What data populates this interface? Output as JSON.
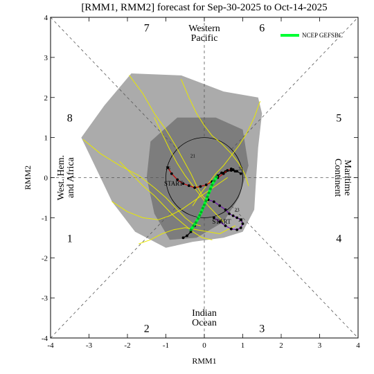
{
  "chart_data": {
    "type": "line",
    "title": "[RMM1, RMM2] forecast for Sep-30-2025 to Oct-14-2025",
    "xlabel": "RMM1",
    "ylabel": "RMM2",
    "xlim": [
      -4,
      4
    ],
    "ylim": [
      -4,
      4
    ],
    "xticks": [
      "-4",
      "-3",
      "-2",
      "-1",
      "0",
      "1",
      "2",
      "3",
      "4"
    ],
    "yticks": [
      "-4",
      "-3",
      "-2",
      "-1",
      "0",
      "1",
      "2",
      "3",
      "4"
    ],
    "grid": false,
    "legend_position": "top-right",
    "phases": [
      {
        "label": "1",
        "x": -3.5,
        "y": -1.5
      },
      {
        "label": "2",
        "x": -1.5,
        "y": -3.75
      },
      {
        "label": "3",
        "x": 1.5,
        "y": -3.75
      },
      {
        "label": "4",
        "x": 3.5,
        "y": -1.5
      },
      {
        "label": "5",
        "x": 3.5,
        "y": 1.5
      },
      {
        "label": "6",
        "x": 1.5,
        "y": 3.75
      },
      {
        "label": "7",
        "x": -1.5,
        "y": 3.75
      },
      {
        "label": "8",
        "x": -3.5,
        "y": 1.5
      }
    ],
    "regions": [
      {
        "lines": [
          "Western",
          "Pacific"
        ],
        "x": 0,
        "y": 3.55
      },
      {
        "lines": [
          "Indian",
          "Ocean"
        ],
        "x": 0,
        "y": -3.55
      }
    ],
    "side_regions": [
      {
        "lines": [
          "West. Hem.",
          "and Africa"
        ],
        "x": -3.55,
        "y": 0,
        "rotate": -90
      },
      {
        "lines": [
          "Maritime",
          "Continent"
        ],
        "x": 3.55,
        "y": 0,
        "rotate": 90
      }
    ],
    "unit_circle_radius": 1,
    "outer_shade": [
      [
        -3.2,
        1.0
      ],
      [
        -2.6,
        1.8
      ],
      [
        -1.9,
        2.6
      ],
      [
        -0.6,
        2.55
      ],
      [
        0.5,
        2.15
      ],
      [
        1.4,
        2.0
      ],
      [
        1.5,
        1.6
      ],
      [
        1.4,
        0.75
      ],
      [
        1.35,
        0.0
      ],
      [
        1.3,
        -0.8
      ],
      [
        1.0,
        -1.35
      ],
      [
        0.5,
        -1.5
      ],
      [
        -0.3,
        -1.6
      ],
      [
        -1.0,
        -1.75
      ],
      [
        -1.8,
        -1.35
      ],
      [
        -2.4,
        -0.6
      ],
      [
        -2.8,
        0.2
      ]
    ],
    "inner_shade": [
      [
        -1.4,
        0.9
      ],
      [
        -0.7,
        1.5
      ],
      [
        0.3,
        1.5
      ],
      [
        1.0,
        1.2
      ],
      [
        1.15,
        0.3
      ],
      [
        0.9,
        -0.5
      ],
      [
        0.5,
        -1.1
      ],
      [
        -0.2,
        -1.5
      ],
      [
        -0.9,
        -1.55
      ],
      [
        -1.3,
        -0.9
      ],
      [
        -1.5,
        0.0
      ]
    ],
    "series": [
      {
        "name": "NCEP GEFSBC",
        "color": "#00ff33",
        "width": 4,
        "x": [
          -0.35,
          -0.28,
          -0.22,
          -0.16,
          -0.12,
          -0.08,
          -0.04,
          0.0,
          0.04,
          0.08,
          0.12,
          0.16,
          0.2,
          0.26,
          0.32
        ],
        "y": [
          -1.3,
          -1.2,
          -1.12,
          -1.02,
          -0.94,
          -0.86,
          -0.76,
          -0.68,
          -0.58,
          -0.48,
          -0.38,
          -0.28,
          -0.18,
          -0.08,
          0.02
        ]
      },
      {
        "name": "",
        "color": "#000000",
        "width": 1.2,
        "x": [
          -0.55,
          -0.45,
          -0.35,
          -0.25,
          -0.15,
          -0.05,
          0.05,
          0.15,
          0.25,
          0.35,
          0.45,
          0.55,
          0.7,
          0.85,
          0.95
        ],
        "y": [
          -1.5,
          -1.45,
          -1.35,
          -1.2,
          -1.0,
          -0.8,
          -0.55,
          -0.3,
          -0.1,
          0.05,
          0.12,
          0.15,
          0.18,
          0.16,
          0.1
        ]
      },
      {
        "name": "",
        "color": "#cc0000",
        "width": 1.2,
        "x": [
          -0.95,
          -0.85,
          -0.7,
          -0.55,
          -0.4,
          -0.25,
          -0.1,
          0.05,
          0.2,
          0.35,
          0.5,
          0.6,
          0.7,
          0.75,
          0.8
        ],
        "y": [
          0.25,
          0.1,
          -0.05,
          -0.15,
          -0.2,
          -0.25,
          -0.22,
          -0.18,
          -0.1,
          0.0,
          0.1,
          0.18,
          0.22,
          0.2,
          0.16
        ]
      },
      {
        "name": "",
        "color": "#6a0dad",
        "width": 1.2,
        "x": [
          0.1,
          0.25,
          0.4,
          0.55,
          0.65,
          0.75,
          0.85,
          0.95,
          1.0,
          0.95,
          0.85,
          0.7,
          0.55,
          0.4,
          0.25
        ],
        "y": [
          -0.55,
          -0.6,
          -0.7,
          -0.8,
          -0.9,
          -0.95,
          -1.0,
          -1.05,
          -1.15,
          -1.25,
          -1.3,
          -1.28,
          -1.2,
          -1.1,
          -1.0
        ]
      },
      {
        "name": "",
        "color": "#e8e800",
        "width": 1,
        "x": [
          -3.15,
          -2.7,
          -2.2,
          -1.7,
          -1.3,
          -1.0,
          -0.7,
          -0.5,
          -0.3,
          -0.1
        ],
        "y": [
          0.95,
          0.6,
          0.3,
          0.05,
          -0.25,
          -0.5,
          -0.8,
          -1.0,
          -1.15,
          -1.2
        ]
      },
      {
        "name": "",
        "color": "#e8e800",
        "width": 1,
        "x": [
          -1.95,
          -1.6,
          -1.3,
          -1.0,
          -0.75,
          -0.55,
          -0.35,
          -0.2,
          -0.05,
          0.1
        ],
        "y": [
          2.55,
          2.1,
          1.6,
          1.2,
          0.8,
          0.45,
          0.1,
          -0.2,
          -0.45,
          -0.6
        ]
      },
      {
        "name": "",
        "color": "#e8e800",
        "width": 1,
        "x": [
          -0.6,
          -0.4,
          -0.2,
          0.0,
          0.2,
          0.45,
          0.7,
          0.9,
          1.05,
          1.15
        ],
        "y": [
          2.45,
          2.0,
          1.6,
          1.3,
          1.05,
          0.85,
          0.6,
          0.35,
          0.1,
          -0.2
        ]
      },
      {
        "name": "",
        "color": "#e8e800",
        "width": 1,
        "x": [
          1.45,
          1.3,
          1.1,
          0.9,
          0.7,
          0.5,
          0.3,
          0.1,
          -0.1,
          -0.3
        ],
        "y": [
          1.9,
          1.5,
          1.1,
          0.8,
          0.55,
          0.3,
          0.1,
          -0.15,
          -0.4,
          -0.7
        ]
      },
      {
        "name": "",
        "color": "#e8e800",
        "width": 1,
        "x": [
          -1.7,
          -1.4,
          -1.1,
          -0.8,
          -0.5,
          -0.2,
          0.1,
          0.4,
          0.6,
          0.8
        ],
        "y": [
          -1.65,
          -1.55,
          -1.4,
          -1.3,
          -1.25,
          -1.3,
          -1.35,
          -1.4,
          -1.3,
          -1.2
        ]
      },
      {
        "name": "",
        "color": "#e8e800",
        "width": 1,
        "x": [
          -2.4,
          -2.0,
          -1.6,
          -1.2,
          -0.9,
          -0.6,
          -0.3,
          0.0,
          0.3,
          0.6
        ],
        "y": [
          -0.6,
          -0.85,
          -1.0,
          -1.05,
          -0.95,
          -0.8,
          -0.6,
          -0.4,
          -0.2,
          0.0
        ]
      },
      {
        "name": "",
        "color": "#e8e800",
        "width": 1,
        "x": [
          -1.3,
          -1.1,
          -0.9,
          -0.7,
          -0.5,
          -0.3,
          -0.1,
          0.1,
          0.3,
          0.5
        ],
        "y": [
          1.5,
          1.1,
          0.7,
          0.35,
          0.05,
          -0.2,
          -0.45,
          -0.7,
          -0.9,
          -1.1
        ]
      },
      {
        "name": "",
        "color": "#e8e800",
        "width": 1,
        "x": [
          -2.2,
          -1.9,
          -1.6,
          -1.3,
          -1.05,
          -0.8,
          -0.55,
          -0.3,
          -0.05,
          0.2
        ],
        "y": [
          0.4,
          0.1,
          -0.2,
          -0.45,
          -0.7,
          -0.95,
          -1.15,
          -1.35,
          -1.5,
          -1.55
        ]
      }
    ],
    "day_labels": [
      {
        "text": "16",
        "x": -0.95,
        "y": 0.2
      },
      {
        "text": "21",
        "x": -0.3,
        "y": 0.5
      },
      {
        "text": "31",
        "x": 0.95,
        "y": 0.18
      },
      {
        "text": "23",
        "x": 0.85,
        "y": -0.85
      },
      {
        "text": "21",
        "x": 0.95,
        "y": -1.1
      }
    ],
    "start_labels": [
      {
        "text": "START",
        "x": -0.8,
        "y": -0.2,
        "color": "#cc0000"
      },
      {
        "text": "START",
        "x": 0.45,
        "y": -1.15,
        "color": "#6a0dad"
      }
    ]
  }
}
